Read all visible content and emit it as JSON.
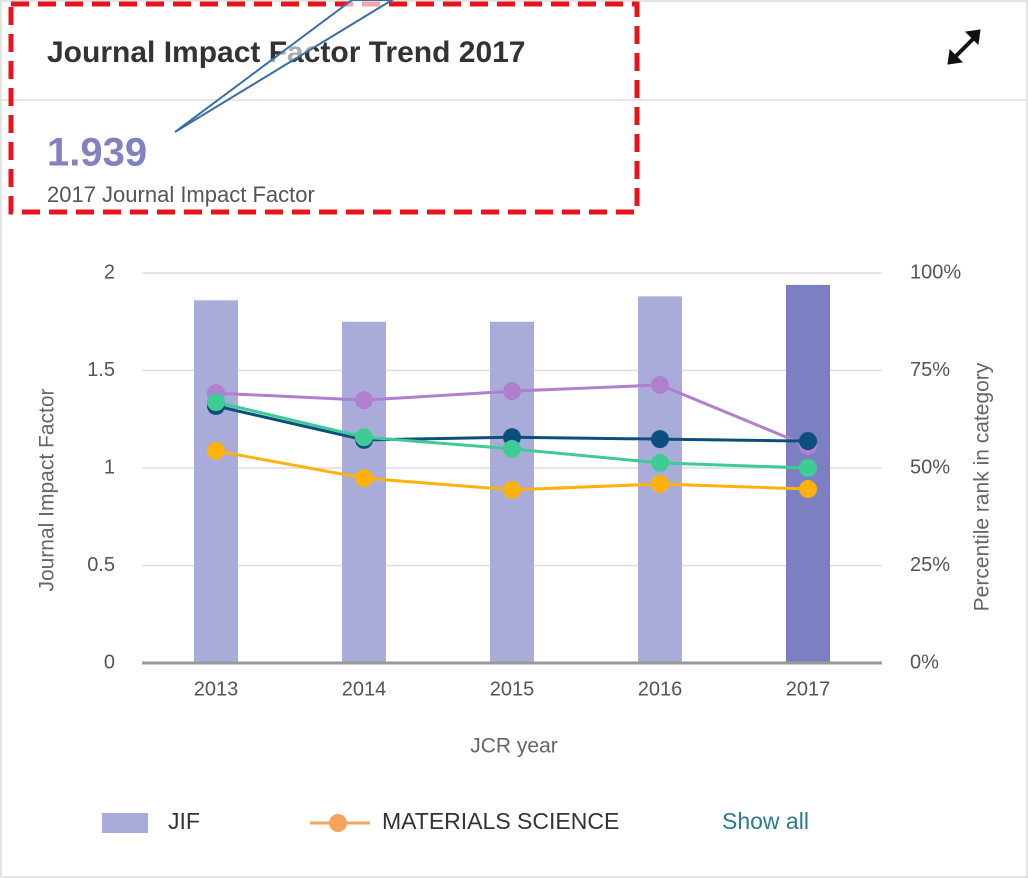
{
  "header": {
    "title": "Journal Impact Factor Trend 2017",
    "value": 1.939,
    "caption": "2017 Journal Impact Factor"
  },
  "chart_data": {
    "type": "bar",
    "xlabel": "JCR year",
    "ylabel": "Journal Impact Factor",
    "y2label": "Percentile rank in category",
    "categories": [
      "2013",
      "2014",
      "2015",
      "2016",
      "2017"
    ],
    "ylim": [
      0,
      2
    ],
    "yticks": [
      0,
      0.5,
      1,
      1.5,
      2
    ],
    "y2lim": [
      0,
      100
    ],
    "y2ticks": [
      {
        "value": 0,
        "label": "0%"
      },
      {
        "value": 25,
        "label": "25%"
      },
      {
        "value": 50,
        "label": "50%"
      },
      {
        "value": 75,
        "label": "75%"
      },
      {
        "value": 100,
        "label": "100%"
      }
    ],
    "grid": true,
    "series": [
      {
        "name": "JIF",
        "type": "bar",
        "color": "#a9acd9",
        "colors": [
          "#a9acd9",
          "#a9acd9",
          "#a9acd9",
          "#a9acd9",
          "#7c80c2"
        ],
        "values": [
          1.86,
          1.75,
          1.75,
          1.88,
          1.939
        ]
      },
      {
        "type": "line",
        "axis": "y2",
        "color": "#b07fd0",
        "values": [
          69.2,
          67.4,
          69.7,
          71.3,
          55.6
        ]
      },
      {
        "type": "line",
        "axis": "y2",
        "color": "#0d4f7c",
        "values": [
          65.9,
          57.2,
          57.9,
          57.4,
          56.9
        ]
      },
      {
        "type": "line",
        "axis": "y2",
        "color": "#3fcb95",
        "values": [
          66.9,
          57.9,
          54.9,
          51.3,
          50.0
        ]
      },
      {
        "name": "MATERIALS SCIENCE",
        "type": "line",
        "axis": "y2",
        "color": "#ffb20d",
        "legend_color": "#f7a35c",
        "values": [
          54.4,
          47.4,
          44.4,
          45.9,
          44.6
        ]
      }
    ]
  },
  "link": "Show all"
}
